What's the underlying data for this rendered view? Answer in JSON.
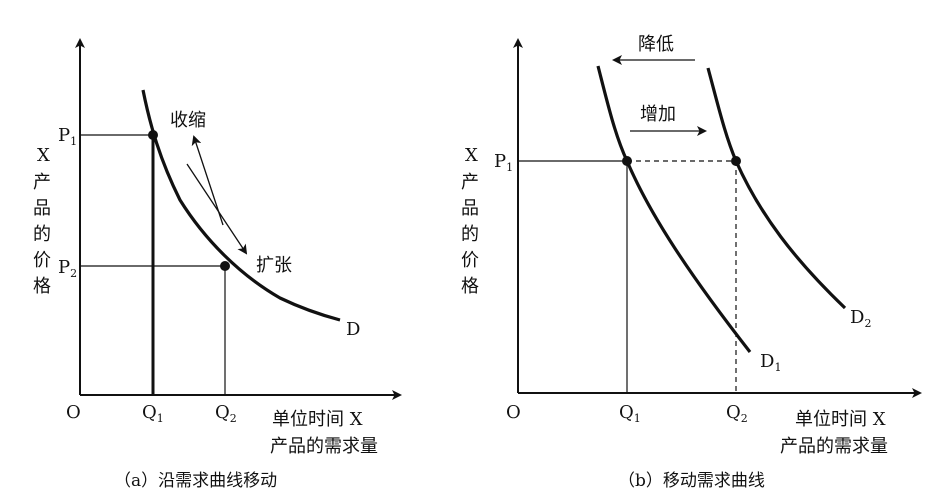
{
  "panel_a": {
    "y_axis_label": [
      "X",
      "产",
      "品",
      "的",
      "价",
      "格"
    ],
    "origin": "O",
    "p1": "P",
    "p1_sub": "1",
    "p2": "P",
    "p2_sub": "2",
    "q1": "Q",
    "q1_sub": "1",
    "q2": "Q",
    "q2_sub": "2",
    "x_axis_label_line1": "单位时间 X",
    "x_axis_label_line2": "产品的需求量",
    "curve_label": "D",
    "contract_label": "收缩",
    "expand_label": "扩张",
    "caption": "（a）沿需求曲线移动"
  },
  "panel_b": {
    "y_axis_label": [
      "X",
      "产",
      "品",
      "的",
      "价",
      "格"
    ],
    "origin": "O",
    "p1": "P",
    "p1_sub": "1",
    "q1": "Q",
    "q1_sub": "1",
    "q2": "Q",
    "q2_sub": "2",
    "x_axis_label_line1": "单位时间 X",
    "x_axis_label_line2": "产品的需求量",
    "d1_label": "D",
    "d1_sub": "1",
    "d2_label": "D",
    "d2_sub": "2",
    "decrease_label": "降低",
    "increase_label": "增加",
    "caption": "（b）移动需求曲线"
  }
}
